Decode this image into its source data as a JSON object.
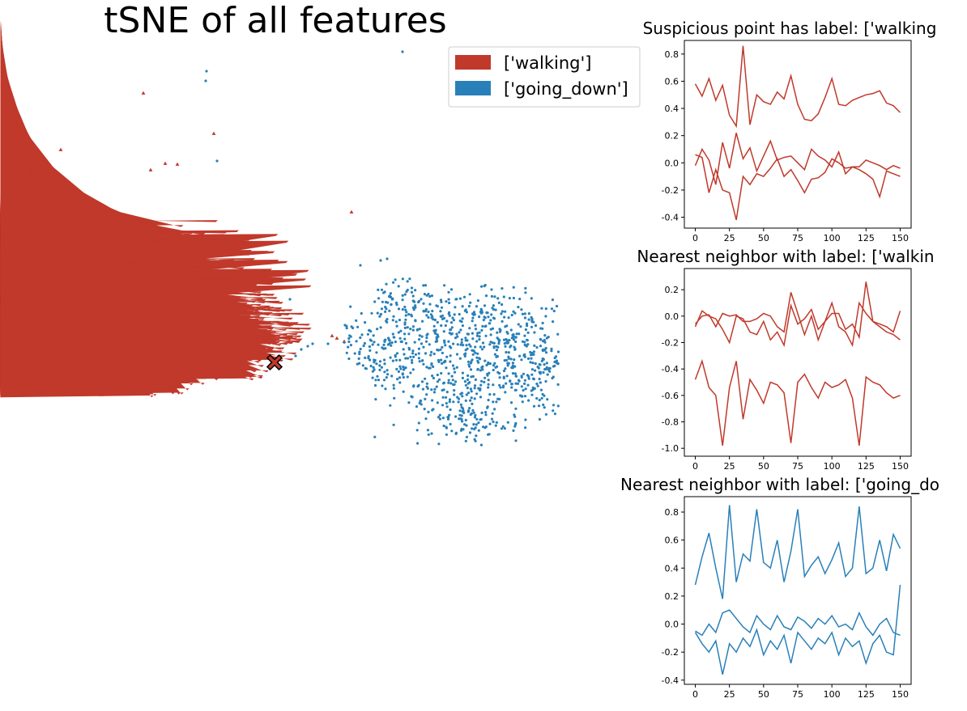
{
  "colors": {
    "walking": "#c0392b",
    "going_down": "#2980b9",
    "marker_edge": "#000000"
  },
  "chart_data": [
    {
      "type": "scatter",
      "title": "tSNE of all features",
      "axes_visible": false,
      "legend": {
        "position": "top-right",
        "entries": [
          "['walking']",
          "['going_down']"
        ]
      },
      "series": [
        {
          "name": "['walking']",
          "color": "#c0392b",
          "marker": "triangle",
          "description_of_distribution": "dense cluster on left half plus scattered outliers above"
        },
        {
          "name": "['going_down']",
          "color": "#2980b9",
          "marker": "dot",
          "description_of_distribution": "dense cluster on right half plus few outliers above"
        }
      ],
      "highlight": {
        "marker": "x",
        "color": "#c0392b",
        "label_series": "['walking']"
      }
    },
    {
      "type": "line",
      "title": "Suspicious point has label: ['walking",
      "xlim": [
        -8,
        158
      ],
      "ylim": [
        -0.48,
        0.9
      ],
      "xticks": [
        0,
        25,
        50,
        75,
        100,
        125,
        150
      ],
      "yticks": [
        -0.4,
        -0.2,
        0.0,
        0.2,
        0.4,
        0.6,
        0.8
      ],
      "color": "#c0392b",
      "series": [
        {
          "x": [
            0,
            5,
            10,
            15,
            20,
            25,
            30,
            35,
            40,
            45,
            50,
            55,
            60,
            65,
            70,
            75,
            80,
            85,
            90,
            95,
            100,
            105,
            110,
            115,
            120,
            125,
            130,
            135,
            140,
            145,
            150
          ],
          "values": [
            0.58,
            0.49,
            0.62,
            0.46,
            0.57,
            0.35,
            0.27,
            0.86,
            0.28,
            0.5,
            0.45,
            0.43,
            0.52,
            0.47,
            0.64,
            0.43,
            0.32,
            0.31,
            0.36,
            0.48,
            0.62,
            0.43,
            0.42,
            0.46,
            0.48,
            0.5,
            0.51,
            0.53,
            0.44,
            0.42,
            0.37
          ]
        },
        {
          "x": [
            0,
            5,
            10,
            15,
            20,
            25,
            30,
            35,
            40,
            45,
            50,
            55,
            60,
            65,
            70,
            75,
            80,
            85,
            90,
            95,
            100,
            105,
            110,
            115,
            120,
            125,
            130,
            135,
            140,
            145,
            150
          ],
          "values": [
            -0.02,
            0.1,
            0.02,
            -0.16,
            0.15,
            -0.04,
            0.22,
            0.03,
            0.11,
            -0.06,
            0.05,
            0.16,
            0.02,
            0.04,
            0.05,
            0.0,
            -0.05,
            0.1,
            0.05,
            0.02,
            -0.03,
            0.08,
            -0.08,
            -0.03,
            -0.03,
            0.02,
            0.0,
            -0.02,
            -0.05,
            -0.02,
            -0.04
          ]
        },
        {
          "x": [
            0,
            5,
            10,
            15,
            20,
            25,
            30,
            35,
            40,
            45,
            50,
            55,
            60,
            65,
            70,
            75,
            80,
            85,
            90,
            95,
            100,
            105,
            110,
            115,
            120,
            125,
            130,
            135,
            140,
            145,
            150
          ],
          "values": [
            0.06,
            0.04,
            -0.22,
            -0.05,
            -0.2,
            -0.22,
            -0.42,
            -0.1,
            -0.16,
            -0.08,
            -0.1,
            -0.04,
            0.03,
            -0.1,
            -0.05,
            -0.13,
            -0.22,
            -0.12,
            -0.11,
            -0.07,
            0.03,
            0.0,
            -0.04,
            -0.03,
            -0.05,
            -0.08,
            -0.12,
            -0.25,
            -0.06,
            -0.08,
            -0.1
          ]
        }
      ]
    },
    {
      "type": "line",
      "title": "Nearest neighbor with label: ['walkin",
      "xlim": [
        -8,
        158
      ],
      "ylim": [
        -1.06,
        0.36
      ],
      "xticks": [
        0,
        25,
        50,
        75,
        100,
        125,
        150
      ],
      "yticks": [
        -1.0,
        -0.8,
        -0.6,
        -0.4,
        -0.2,
        0.0,
        0.2
      ],
      "color": "#c0392b",
      "series": [
        {
          "x": [
            0,
            5,
            10,
            15,
            20,
            25,
            30,
            35,
            40,
            45,
            50,
            55,
            60,
            65,
            70,
            75,
            80,
            85,
            90,
            95,
            100,
            105,
            110,
            115,
            120,
            125,
            130,
            135,
            140,
            145,
            150
          ],
          "values": [
            -0.06,
            0.0,
            0.01,
            -0.08,
            0.02,
            0.0,
            0.01,
            -0.04,
            -0.04,
            -0.02,
            0.02,
            0.0,
            -0.08,
            -0.12,
            0.18,
            0.02,
            -0.14,
            0.0,
            -0.18,
            -0.04,
            0.02,
            0.02,
            -0.1,
            -0.06,
            -0.16,
            0.26,
            -0.04,
            -0.06,
            -0.08,
            -0.12,
            0.04
          ]
        },
        {
          "x": [
            0,
            5,
            10,
            15,
            20,
            25,
            30,
            35,
            40,
            45,
            50,
            55,
            60,
            65,
            70,
            75,
            80,
            85,
            90,
            95,
            100,
            105,
            110,
            115,
            120,
            125,
            130,
            135,
            140,
            145,
            150
          ],
          "values": [
            -0.08,
            0.04,
            0.0,
            -0.02,
            -0.1,
            -0.2,
            0.0,
            -0.02,
            -0.12,
            -0.14,
            -0.04,
            -0.18,
            -0.12,
            -0.22,
            0.08,
            -0.06,
            -0.02,
            0.05,
            -0.1,
            -0.04,
            0.1,
            -0.08,
            -0.12,
            -0.22,
            0.1,
            0.02,
            -0.04,
            -0.08,
            -0.12,
            -0.14,
            -0.18
          ]
        },
        {
          "x": [
            0,
            5,
            10,
            15,
            20,
            25,
            30,
            35,
            40,
            45,
            50,
            55,
            60,
            65,
            70,
            75,
            80,
            85,
            90,
            95,
            100,
            105,
            110,
            115,
            120,
            125,
            130,
            135,
            140,
            145,
            150
          ],
          "values": [
            -0.48,
            -0.34,
            -0.54,
            -0.6,
            -0.98,
            -0.54,
            -0.34,
            -0.78,
            -0.48,
            -0.56,
            -0.66,
            -0.5,
            -0.52,
            -0.58,
            -0.96,
            -0.5,
            -0.44,
            -0.54,
            -0.62,
            -0.5,
            -0.54,
            -0.52,
            -0.48,
            -0.62,
            -0.98,
            -0.46,
            -0.5,
            -0.52,
            -0.58,
            -0.62,
            -0.6
          ]
        }
      ]
    },
    {
      "type": "line",
      "title": "Nearest neighbor with label: ['going_do",
      "xlim": [
        -8,
        158
      ],
      "ylim": [
        -0.43,
        0.91
      ],
      "xticks": [
        0,
        25,
        50,
        75,
        100,
        125,
        150
      ],
      "yticks": [
        -0.4,
        -0.2,
        0.0,
        0.2,
        0.4,
        0.6,
        0.8
      ],
      "color": "#2980b9",
      "series": [
        {
          "x": [
            0,
            5,
            10,
            15,
            20,
            25,
            30,
            35,
            40,
            45,
            50,
            55,
            60,
            65,
            70,
            75,
            80,
            85,
            90,
            95,
            100,
            105,
            110,
            115,
            120,
            125,
            130,
            135,
            140,
            145,
            150
          ],
          "values": [
            0.28,
            0.48,
            0.65,
            0.4,
            0.18,
            0.85,
            0.3,
            0.5,
            0.45,
            0.82,
            0.44,
            0.4,
            0.6,
            0.3,
            0.52,
            0.82,
            0.34,
            0.42,
            0.48,
            0.36,
            0.46,
            0.58,
            0.34,
            0.4,
            0.84,
            0.36,
            0.4,
            0.6,
            0.38,
            0.64,
            0.54
          ]
        },
        {
          "x": [
            0,
            5,
            10,
            15,
            20,
            25,
            30,
            35,
            40,
            45,
            50,
            55,
            60,
            65,
            70,
            75,
            80,
            85,
            90,
            95,
            100,
            105,
            110,
            115,
            120,
            125,
            130,
            135,
            140,
            145,
            150
          ],
          "values": [
            -0.05,
            -0.08,
            0.0,
            -0.06,
            0.08,
            0.1,
            0.04,
            -0.02,
            -0.06,
            0.06,
            0.0,
            -0.04,
            0.06,
            -0.02,
            -0.04,
            0.05,
            0.02,
            -0.03,
            0.04,
            0.0,
            0.06,
            -0.02,
            0.0,
            -0.04,
            0.08,
            -0.02,
            -0.08,
            0.0,
            0.04,
            -0.06,
            -0.08
          ]
        },
        {
          "x": [
            0,
            5,
            10,
            15,
            20,
            25,
            30,
            35,
            40,
            45,
            50,
            55,
            60,
            65,
            70,
            75,
            80,
            85,
            90,
            95,
            100,
            105,
            110,
            115,
            120,
            125,
            130,
            135,
            140,
            145,
            150
          ],
          "values": [
            -0.06,
            -0.14,
            -0.2,
            -0.12,
            -0.36,
            -0.14,
            -0.2,
            -0.1,
            -0.16,
            -0.04,
            -0.22,
            -0.12,
            -0.18,
            -0.08,
            -0.28,
            -0.06,
            -0.12,
            -0.18,
            -0.1,
            -0.14,
            -0.06,
            -0.22,
            -0.1,
            -0.16,
            -0.12,
            -0.28,
            -0.14,
            -0.08,
            -0.2,
            -0.22,
            0.28
          ]
        }
      ]
    }
  ]
}
